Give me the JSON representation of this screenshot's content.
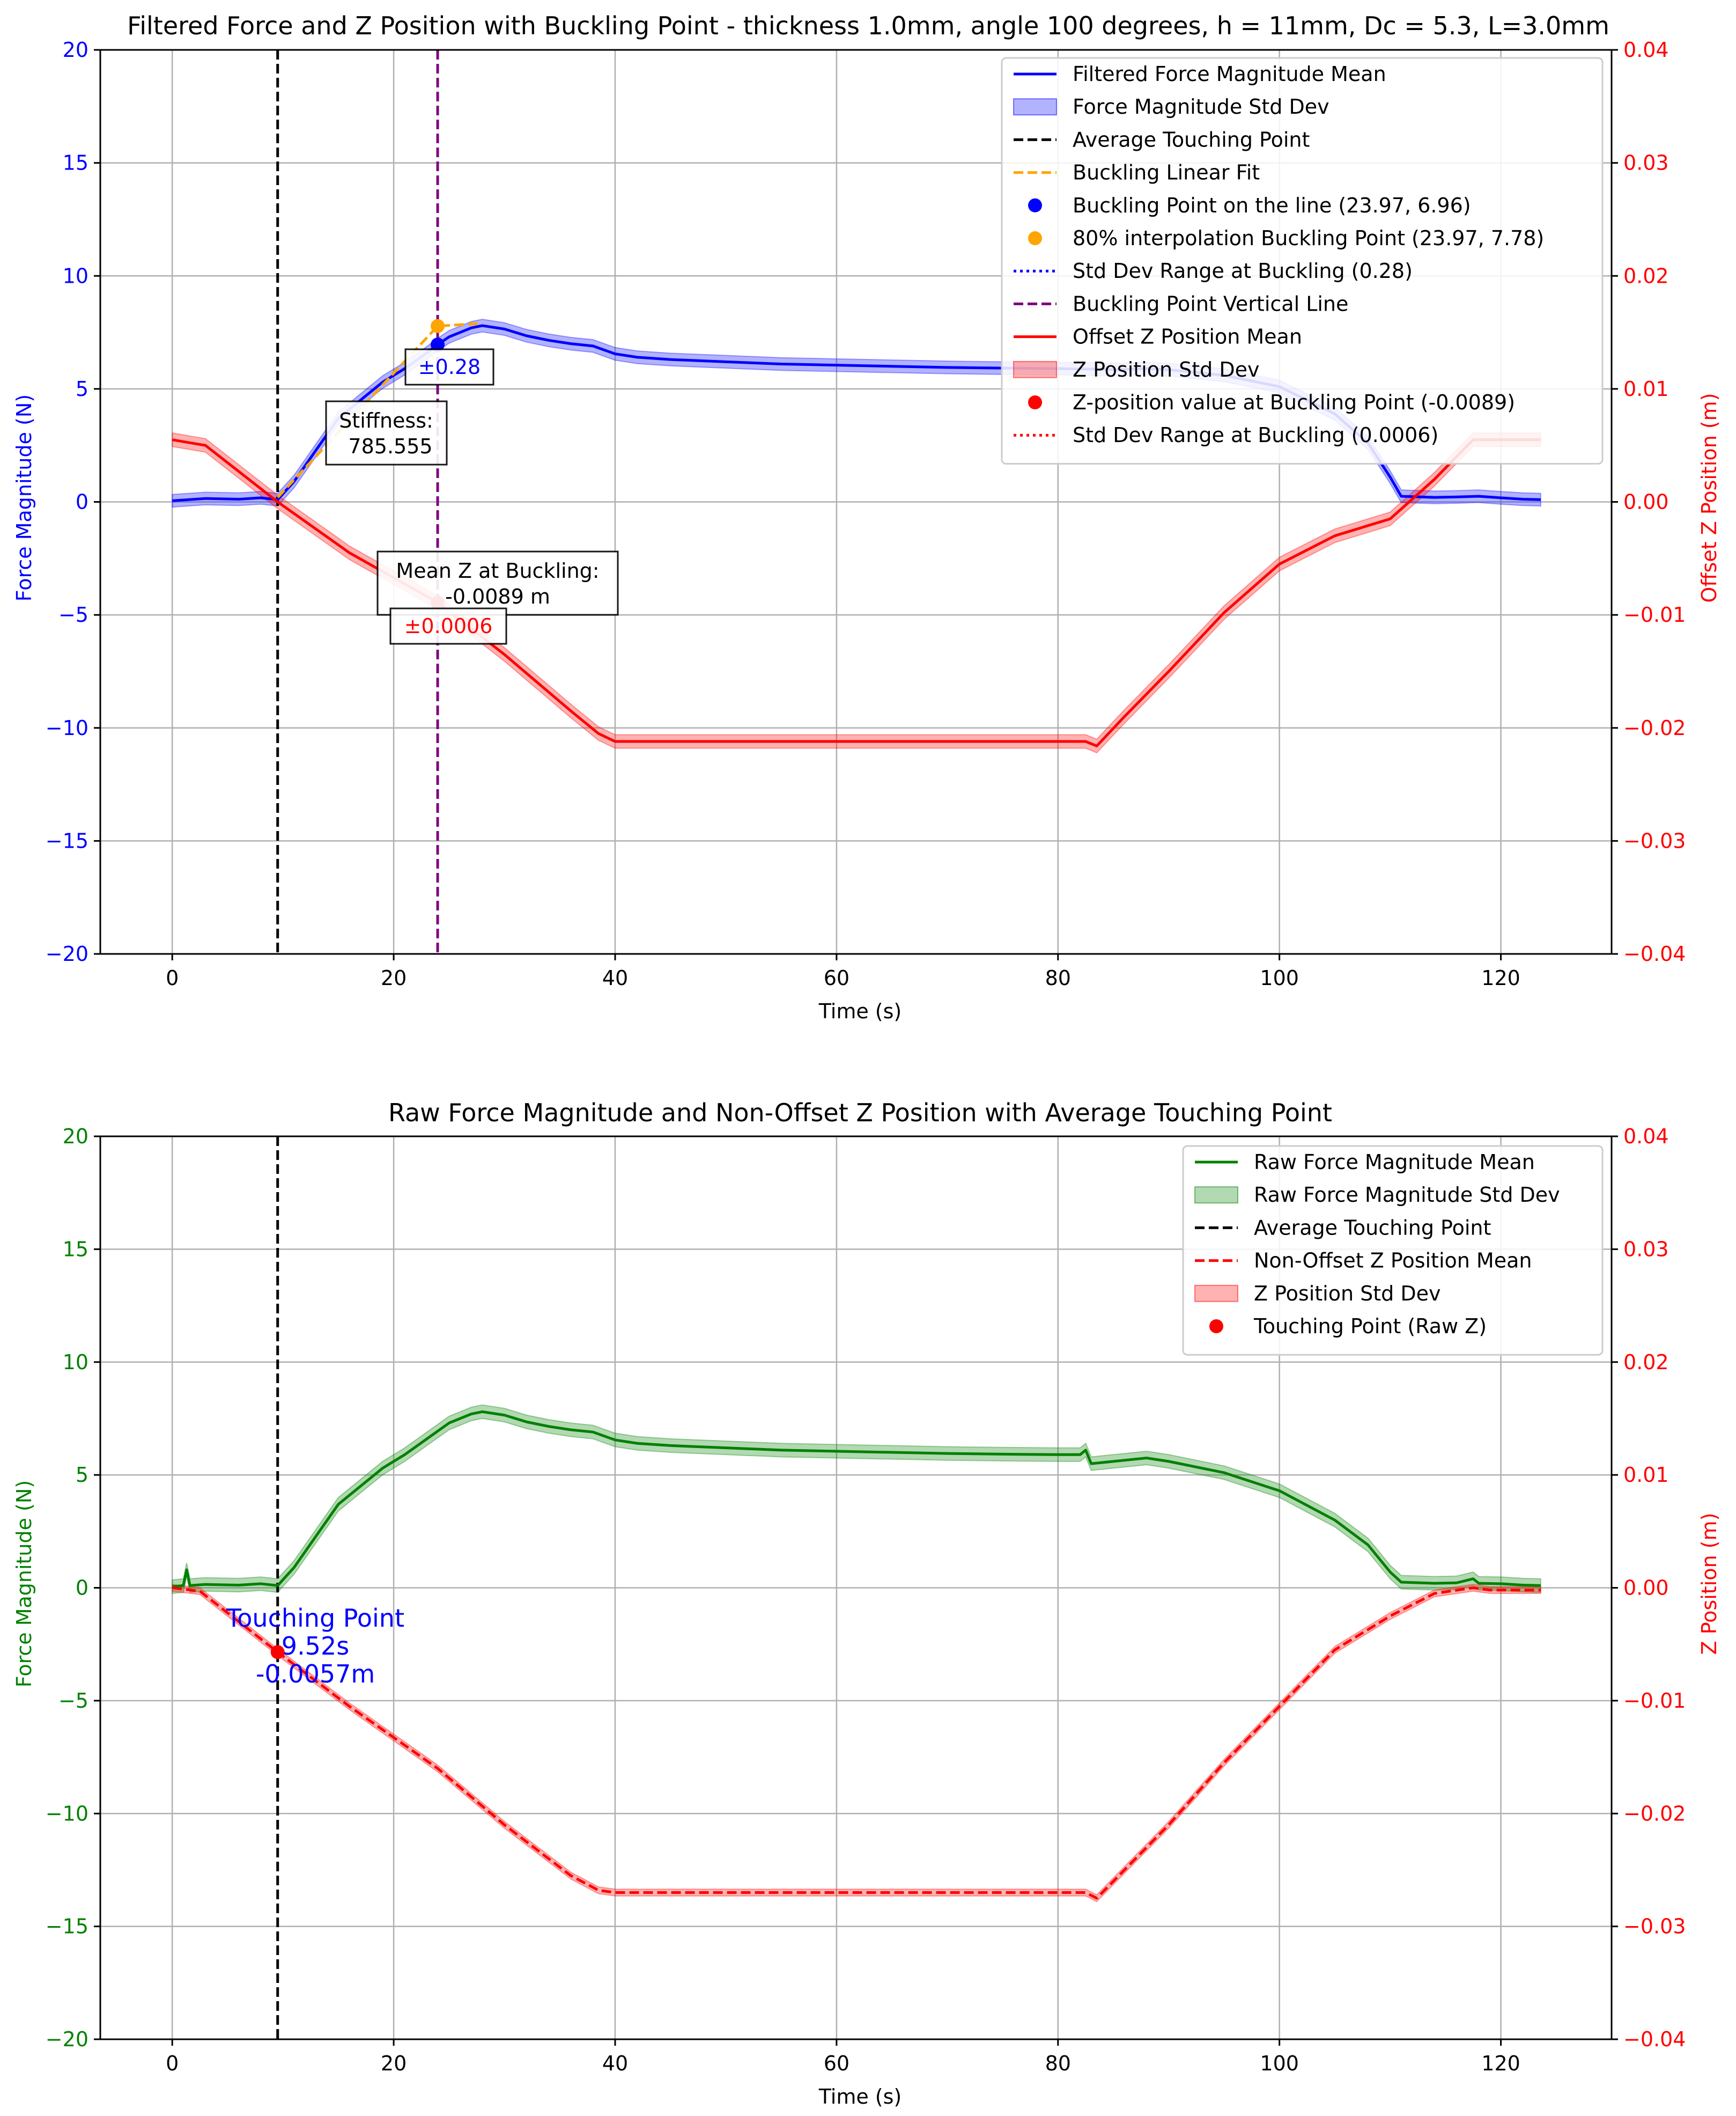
{
  "chart_data": [
    {
      "type": "line",
      "title": "Filtered Force and Z Position with Buckling Point - thickness 1.0mm, angle 100 degrees, h = 11mm, Dc = 5.3, L=3.0mm",
      "xlabel": "Time (s)",
      "ylabel": "Force Magnitude (N)",
      "ylabel_right": "Offset Z Position (m)",
      "xlim": [
        -6.5,
        130
      ],
      "ylim": [
        -20,
        20
      ],
      "ylim_right": [
        -0.04,
        0.04
      ],
      "x_ticks": [
        0,
        20,
        40,
        60,
        80,
        100,
        120
      ],
      "x_tick_labels": [
        "0",
        "20",
        "40",
        "60",
        "80",
        "100",
        "120"
      ],
      "y_ticks": [
        -20,
        -15,
        -10,
        -5,
        0,
        5,
        10,
        15,
        20
      ],
      "y_tick_labels": [
        "−20",
        "−15",
        "−10",
        "−5",
        "0",
        "5",
        "10",
        "15",
        "20"
      ],
      "y_right_ticks": [
        -0.04,
        -0.03,
        -0.02,
        -0.01,
        0.0,
        0.01,
        0.02,
        0.03,
        0.04
      ],
      "y_right_tick_labels": [
        "−0.04",
        "−0.03",
        "−0.02",
        "−0.01",
        "0.00",
        "0.01",
        "0.02",
        "0.03",
        "0.04"
      ],
      "grid": true,
      "legend_position": "top-right",
      "legend": [
        "Filtered Force Magnitude Mean",
        "Force Magnitude Std Dev",
        "Average Touching Point",
        "Buckling Linear Fit",
        "Buckling Point on the line (23.97, 6.96)",
        "80% interpolation Buckling Point (23.97, 7.78)",
        "Std Dev Range at Buckling (0.28)",
        "Buckling Point Vertical Line",
        "Offset Z Position Mean",
        "Z Position Std Dev",
        "Z-position value at Buckling Point (-0.0089)",
        "Std Dev Range at Buckling (0.0006)"
      ],
      "annotations": {
        "std_force": "±0.28",
        "stiffness_title": "Stiffness:",
        "stiffness_value": "785.555",
        "mean_z_title": "Mean Z at Buckling:",
        "mean_z_value": "-0.0089 m",
        "std_z": "±0.0006"
      },
      "touching_x": 9.52,
      "buckling_x": 23.97,
      "series": [
        {
          "name": "Filtered Force Magnitude Mean",
          "axis": "left",
          "color": "#0000ff",
          "band": 0.28,
          "x": [
            0,
            3,
            6,
            8,
            9.52,
            11,
            13,
            15,
            17,
            19,
            21,
            23,
            23.97,
            25,
            27,
            28,
            30,
            32,
            34,
            36,
            38,
            40,
            42,
            45,
            50,
            55,
            60,
            65,
            70,
            75,
            80,
            82,
            83,
            85,
            88,
            90,
            95,
            100,
            105,
            108,
            110,
            111,
            114,
            116,
            118,
            120,
            122,
            123.6
          ],
          "y": [
            0.05,
            0.15,
            0.12,
            0.18,
            0.1,
            0.9,
            2.3,
            3.7,
            4.5,
            5.3,
            5.9,
            6.6,
            6.96,
            7.3,
            7.7,
            7.8,
            7.65,
            7.35,
            7.15,
            7.0,
            6.9,
            6.55,
            6.4,
            6.3,
            6.2,
            6.1,
            6.05,
            6.0,
            5.95,
            5.92,
            5.9,
            5.88,
            5.88,
            5.85,
            5.9,
            5.85,
            5.6,
            5.1,
            3.9,
            2.6,
            1.1,
            0.25,
            0.2,
            0.22,
            0.25,
            0.18,
            0.12,
            0.1
          ]
        },
        {
          "name": "Offset Z Position Mean",
          "axis": "right",
          "color": "#ff0000",
          "band": 0.0006,
          "x": [
            0,
            3,
            9.52,
            16,
            23.97,
            30,
            36,
            38.5,
            40,
            45,
            50,
            60,
            70,
            80,
            82.5,
            83.5,
            86,
            90,
            95,
            100,
            105,
            110,
            114,
            117.5,
            119,
            123.6
          ],
          "y": [
            0.0055,
            0.005,
            0.0,
            -0.0045,
            -0.0089,
            -0.0135,
            -0.0185,
            -0.0205,
            -0.0212,
            -0.0212,
            -0.0212,
            -0.0212,
            -0.0212,
            -0.0212,
            -0.0212,
            -0.0216,
            -0.019,
            -0.015,
            -0.0098,
            -0.0055,
            -0.003,
            -0.0015,
            0.002,
            0.0055,
            0.0055,
            0.0055
          ]
        },
        {
          "name": "Buckling Linear Fit",
          "axis": "left",
          "color": "#ffa500",
          "x": [
            9.52,
            23.97,
            28
          ],
          "y": [
            0.2,
            7.78,
            7.9
          ]
        }
      ],
      "points": [
        {
          "name": "Buckling Point on the line (23.97, 6.96)",
          "x": 23.97,
          "y": 6.96,
          "color": "#0000ff"
        },
        {
          "name": "80% interpolation Buckling Point (23.97, 7.78)",
          "x": 23.97,
          "y": 7.78,
          "color": "#ffa500"
        },
        {
          "name": "Z-position value at Buckling Point (-0.0089)",
          "x": 23.97,
          "y": -0.0089,
          "axis": "right",
          "color": "#ff0000"
        }
      ]
    },
    {
      "type": "line",
      "title": "Raw Force Magnitude and Non-Offset Z Position with Average Touching Point",
      "xlabel": "Time (s)",
      "ylabel": "Force Magnitude (N)",
      "ylabel_right": "Z Position (m)",
      "xlim": [
        -6.5,
        130
      ],
      "ylim": [
        -20,
        20
      ],
      "ylim_right": [
        -0.04,
        0.04
      ],
      "x_ticks": [
        0,
        20,
        40,
        60,
        80,
        100,
        120
      ],
      "x_tick_labels": [
        "0",
        "20",
        "40",
        "60",
        "80",
        "100",
        "120"
      ],
      "y_ticks": [
        -20,
        -15,
        -10,
        -5,
        0,
        5,
        10,
        15,
        20
      ],
      "y_tick_labels": [
        "−20",
        "−15",
        "−10",
        "−5",
        "0",
        "5",
        "10",
        "15",
        "20"
      ],
      "y_right_ticks": [
        -0.04,
        -0.03,
        -0.02,
        -0.01,
        0.0,
        0.01,
        0.02,
        0.03,
        0.04
      ],
      "y_right_tick_labels": [
        "−0.04",
        "−0.03",
        "−0.02",
        "−0.01",
        "0.00",
        "0.01",
        "0.02",
        "0.03",
        "0.04"
      ],
      "grid": true,
      "legend_position": "top-right",
      "legend": [
        "Raw Force Magnitude Mean",
        "Raw Force Magnitude Std Dev",
        "Average Touching Point",
        "Non-Offset Z Position Mean",
        "Z Position Std Dev",
        "Touching Point (Raw Z)"
      ],
      "annotations": {
        "touch_line1": "Touching Point",
        "touch_line2": "9.52s",
        "touch_line3": "-0.0057m"
      },
      "touching_x": 9.52,
      "series": [
        {
          "name": "Raw Force Magnitude Mean",
          "axis": "left",
          "color": "#008000",
          "band": 0.3,
          "x": [
            0,
            1,
            1.3,
            1.6,
            3,
            6,
            8,
            9.52,
            11,
            13,
            15,
            17,
            19,
            21,
            23,
            25,
            27,
            28,
            30,
            32,
            34,
            36,
            38,
            40,
            42,
            45,
            50,
            55,
            60,
            65,
            70,
            75,
            80,
            82,
            82.5,
            83,
            85,
            88,
            90,
            95,
            100,
            105,
            108,
            110,
            111,
            114,
            116,
            117.5,
            118,
            120,
            122,
            123.6
          ],
          "y": [
            0.05,
            0.1,
            0.8,
            0.1,
            0.15,
            0.12,
            0.18,
            0.1,
            0.9,
            2.3,
            3.7,
            4.5,
            5.3,
            5.9,
            6.6,
            7.3,
            7.7,
            7.8,
            7.65,
            7.35,
            7.15,
            7.0,
            6.9,
            6.55,
            6.4,
            6.3,
            6.2,
            6.1,
            6.05,
            6.0,
            5.95,
            5.92,
            5.9,
            5.9,
            6.1,
            5.5,
            5.6,
            5.75,
            5.6,
            5.1,
            4.3,
            3.0,
            1.9,
            0.7,
            0.25,
            0.2,
            0.22,
            0.4,
            0.2,
            0.18,
            0.12,
            0.1
          ]
        },
        {
          "name": "Non-Offset Z Position Mean",
          "axis": "right",
          "color": "#ff0000",
          "band": 0.0003,
          "x": [
            0,
            2.5,
            9.52,
            16,
            23.97,
            30,
            36,
            38.5,
            40,
            45,
            50,
            60,
            70,
            80,
            82.5,
            83.5,
            86,
            90,
            95,
            100,
            105,
            110,
            114,
            117.5,
            119,
            123.6
          ],
          "y": [
            0.0,
            -0.0003,
            -0.0057,
            -0.0105,
            -0.016,
            -0.021,
            -0.0255,
            -0.0268,
            -0.027,
            -0.027,
            -0.027,
            -0.027,
            -0.027,
            -0.027,
            -0.027,
            -0.0275,
            -0.025,
            -0.021,
            -0.0155,
            -0.0105,
            -0.0055,
            -0.0025,
            -0.0005,
            0.0,
            -0.0002,
            -0.0002
          ]
        }
      ],
      "points": [
        {
          "name": "Touching Point (Raw Z)",
          "x": 9.52,
          "y": -0.0057,
          "axis": "right",
          "color": "#ff0000"
        }
      ]
    }
  ]
}
